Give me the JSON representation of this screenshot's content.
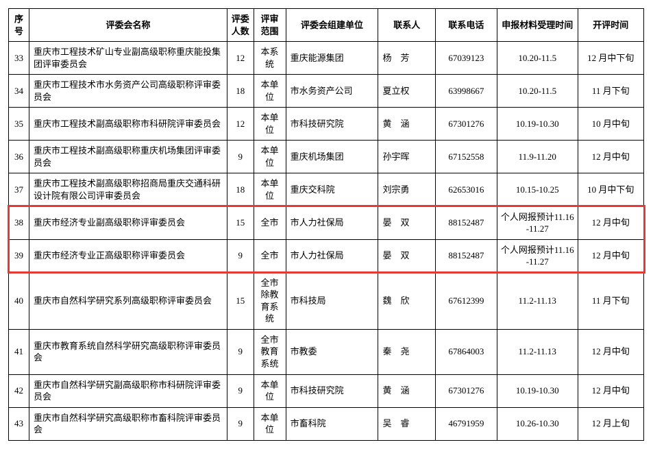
{
  "table": {
    "headers": {
      "seq": "序号",
      "name": "评委会名称",
      "count": "评委人数",
      "scope": "评审范围",
      "org": "评委会组建单位",
      "contact": "联系人",
      "phone": "联系电话",
      "time": "申报材料受理时间",
      "open": "开评时间"
    },
    "rows": [
      {
        "seq": "33",
        "name": "重庆市工程技术矿山专业副高级职称重庆能投集团评审委员会",
        "count": "12",
        "scope": "本系统",
        "org": "重庆能源集团",
        "contact": "杨　芳",
        "phone": "67039123",
        "time": "10.20-11.5",
        "open": "12 月中下旬"
      },
      {
        "seq": "34",
        "name": "重庆市工程技术市水务资产公司高级职称评审委员会",
        "count": "18",
        "scope": "本单位",
        "org": "市水务资产公司",
        "contact": "夏立权",
        "phone": "63998667",
        "time": "10.20-11.5",
        "open": "11 月下旬"
      },
      {
        "seq": "35",
        "name": "重庆市工程技术副高级职称市科研院评审委员会",
        "count": "12",
        "scope": "本单位",
        "org": "市科技研究院",
        "contact": "黄　涵",
        "phone": "67301276",
        "time": "10.19-10.30",
        "open": "10 月中旬"
      },
      {
        "seq": "36",
        "name": "重庆市工程技术副高级职称重庆机场集团评审委员会",
        "count": "9",
        "scope": "本单位",
        "org": "重庆机场集团",
        "contact": "孙宇晖",
        "phone": "67152558",
        "time": "11.9-11.20",
        "open": "12 月中旬"
      },
      {
        "seq": "37",
        "name": "重庆市工程技术副高级职称招商局重庆交通科研设计院有限公司评审委员会",
        "count": "18",
        "scope": "本单位",
        "org": "重庆交科院",
        "contact": "刘宗勇",
        "phone": "62653016",
        "time": "10.15-10.25",
        "open": "10 月中下旬"
      },
      {
        "seq": "38",
        "name": "重庆市经济专业副高级职称评审委员会",
        "count": "15",
        "scope": "全市",
        "org": "市人力社保局",
        "contact": "晏　双",
        "phone": "88152487",
        "time": "个人网报预计11.16-11.27",
        "open": "12 月中旬"
      },
      {
        "seq": "39",
        "name": "重庆市经济专业正高级职称评审委员会",
        "count": "9",
        "scope": "全市",
        "org": "市人力社保局",
        "contact": "晏　双",
        "phone": "88152487",
        "time": "个人网报预计11.16-11.27",
        "open": "12 月中旬"
      },
      {
        "seq": "40",
        "name": "重庆市自然科学研究系列高级职称评审委员会",
        "count": "15",
        "scope": "全市除教育系统",
        "org": "市科技局",
        "contact": "魏　欣",
        "phone": "67612399",
        "time": "11.2-11.13",
        "open": "11 月下旬"
      },
      {
        "seq": "41",
        "name": "重庆市教育系统自然科学研究高级职称评审委员会",
        "count": "9",
        "scope": "全市教育系统",
        "org": "市教委",
        "contact": "秦　尧",
        "phone": "67864003",
        "time": "11.2-11.13",
        "open": "12 月中旬"
      },
      {
        "seq": "42",
        "name": "重庆市自然科学研究副高级职称市科研院评审委员会",
        "count": "9",
        "scope": "本单位",
        "org": "市科技研究院",
        "contact": "黄　涵",
        "phone": "67301276",
        "time": "10.19-10.30",
        "open": "12 月中旬"
      },
      {
        "seq": "43",
        "name": "重庆市自然科学研究高级职称市畜科院评审委员会",
        "count": "9",
        "scope": "本单位",
        "org": "市畜科院",
        "contact": "吴　睿",
        "phone": "46791959",
        "time": "10.26-10.30",
        "open": "12 月上旬"
      }
    ],
    "highlight": {
      "from_seq": "38",
      "to_seq": "39",
      "color": "#e53935"
    }
  }
}
